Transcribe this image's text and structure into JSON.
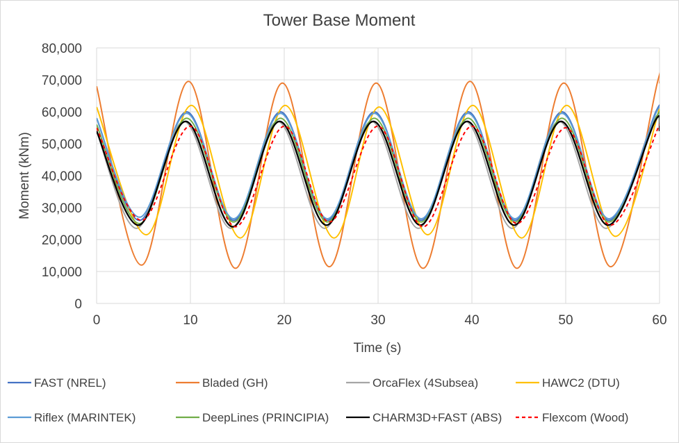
{
  "chart_data": {
    "type": "line",
    "title": "Tower Base Moment",
    "xlabel": "Time (s)",
    "ylabel": "Moment (kNm)",
    "xlim": [
      0,
      60
    ],
    "ylim": [
      0,
      80000
    ],
    "x_ticks": [
      "0",
      "10",
      "20",
      "30",
      "40",
      "50",
      "60"
    ],
    "y_ticks": [
      "0",
      "10,000",
      "20,000",
      "30,000",
      "40,000",
      "50,000",
      "60,000",
      "70,000",
      "80,000"
    ],
    "grid": "horizontal",
    "legend_position": "bottom",
    "series": [
      {
        "name": "FAST (NREL)",
        "color": "#4472c4",
        "dash": "solid",
        "x": [
          0,
          4.6,
          9.6,
          14.6,
          19.6,
          24.6,
          29.6,
          34.6,
          39.6,
          44.6,
          49.6,
          54.6,
          59.6,
          60
        ],
        "y": [
          58000,
          26000,
          60000,
          26000,
          60000,
          26000,
          60000,
          26000,
          60000,
          26000,
          60000,
          26000,
          60000,
          59000
        ]
      },
      {
        "name": "Bladed (GH)",
        "color": "#ed7d31",
        "dash": "solid",
        "x": [
          0,
          4.8,
          9.8,
          14.8,
          19.8,
          24.8,
          29.8,
          34.8,
          39.8,
          44.8,
          49.8,
          54.8,
          59.8,
          60
        ],
        "y": [
          68000,
          12000,
          69500,
          11000,
          69000,
          11500,
          69000,
          11000,
          69500,
          11000,
          69000,
          11500,
          69500,
          69000
        ]
      },
      {
        "name": "OrcaFlex (4Subsea)",
        "color": "#a5a5a5",
        "dash": "solid",
        "x": [
          0,
          4.3,
          9.3,
          14.3,
          19.3,
          24.3,
          29.3,
          34.3,
          39.3,
          44.3,
          49.3,
          54.3,
          59.3,
          60
        ],
        "y": [
          54000,
          23500,
          57000,
          23500,
          57000,
          23500,
          57000,
          23500,
          57000,
          23500,
          57000,
          23500,
          57000,
          55000
        ]
      },
      {
        "name": "HAWC2 (DTU)",
        "color": "#ffc000",
        "dash": "solid",
        "x": [
          0,
          5.3,
          10.1,
          15.3,
          20.1,
          25.3,
          30.1,
          35.3,
          40.1,
          45.3,
          50.1,
          55.3,
          60
        ],
        "y": [
          61500,
          21500,
          62000,
          20500,
          62000,
          20500,
          61500,
          21500,
          62000,
          20500,
          62000,
          21000,
          61000
        ]
      },
      {
        "name": "Riflex (MARINTEK)",
        "color": "#5b9bd5",
        "dash": "solid",
        "x": [
          0,
          4.6,
          9.6,
          14.6,
          19.6,
          24.6,
          29.6,
          34.6,
          39.6,
          44.6,
          49.6,
          54.6,
          59.6,
          60
        ],
        "y": [
          58000,
          27000,
          59500,
          26500,
          59500,
          26500,
          59500,
          26500,
          59500,
          26500,
          59500,
          26500,
          59500,
          59000
        ]
      },
      {
        "name": "DeepLines (PRINCIPIA)",
        "color": "#70ad47",
        "dash": "solid",
        "x": [
          0,
          4.6,
          9.6,
          14.6,
          19.6,
          24.6,
          29.6,
          34.6,
          39.6,
          44.6,
          49.6,
          54.6,
          59.6,
          60
        ],
        "y": [
          56000,
          25000,
          58000,
          25500,
          58000,
          25500,
          58000,
          25500,
          58000,
          25500,
          58000,
          25500,
          58000,
          57500
        ]
      },
      {
        "name": "CHARM3D+FAST (ABS)",
        "color": "#000000",
        "dash": "solid",
        "x": [
          0,
          4.5,
          9.5,
          14.5,
          19.5,
          24.5,
          29.5,
          34.5,
          39.5,
          44.5,
          49.5,
          54.5,
          59.5,
          60
        ],
        "y": [
          54000,
          24500,
          57000,
          24000,
          57000,
          24500,
          57000,
          24500,
          57000,
          24500,
          57000,
          24500,
          57000,
          54000
        ]
      },
      {
        "name": "Flexcom (Wood)",
        "color": "#ff0000",
        "dash": "dashed",
        "x": [
          0,
          4.8,
          10,
          14.8,
          20,
          24.8,
          30,
          34.8,
          40,
          44.8,
          50,
          54.8,
          60
        ],
        "y": [
          55000,
          26000,
          55500,
          24000,
          55500,
          25500,
          55500,
          24000,
          55500,
          25000,
          55000,
          24500,
          56000
        ]
      }
    ]
  }
}
